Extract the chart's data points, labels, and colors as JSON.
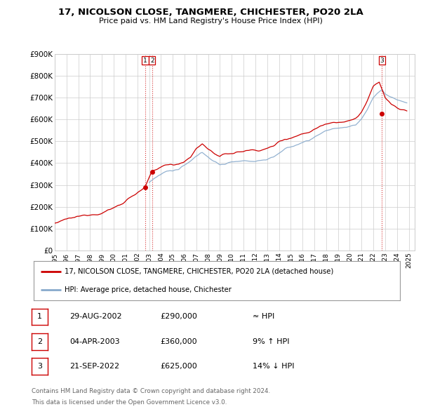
{
  "title": "17, NICOLSON CLOSE, TANGMERE, CHICHESTER, PO20 2LA",
  "subtitle": "Price paid vs. HM Land Registry's House Price Index (HPI)",
  "sale_labels": [
    "1",
    "2",
    "3"
  ],
  "sale_dates_str": [
    "29-AUG-2002",
    "04-APR-2003",
    "21-SEP-2022"
  ],
  "sale_prices_str": [
    "£290,000",
    "£360,000",
    "£625,000"
  ],
  "sale_hpi_str": [
    "≈ HPI",
    "9% ↑ HPI",
    "14% ↓ HPI"
  ],
  "legend_line1": "17, NICOLSON CLOSE, TANGMERE, CHICHESTER, PO20 2LA (detached house)",
  "legend_line2": "HPI: Average price, detached house, Chichester",
  "footer1": "Contains HM Land Registry data © Crown copyright and database right 2024.",
  "footer2": "This data is licensed under the Open Government Licence v3.0.",
  "line_color": "#cc0000",
  "hpi_color": "#88aacc",
  "vline_color": "#cc0000",
  "background_color": "#ffffff",
  "grid_color": "#cccccc",
  "ylim": [
    0,
    900000
  ],
  "yticks": [
    0,
    100000,
    200000,
    300000,
    400000,
    500000,
    600000,
    700000,
    800000,
    900000
  ],
  "ytick_labels": [
    "£0",
    "£100K",
    "£200K",
    "£300K",
    "£400K",
    "£500K",
    "£600K",
    "£700K",
    "£800K",
    "£900K"
  ],
  "sale_year_decimals": [
    2002.664,
    2003.253,
    2022.722
  ],
  "sale_prices": [
    290000,
    360000,
    625000
  ]
}
